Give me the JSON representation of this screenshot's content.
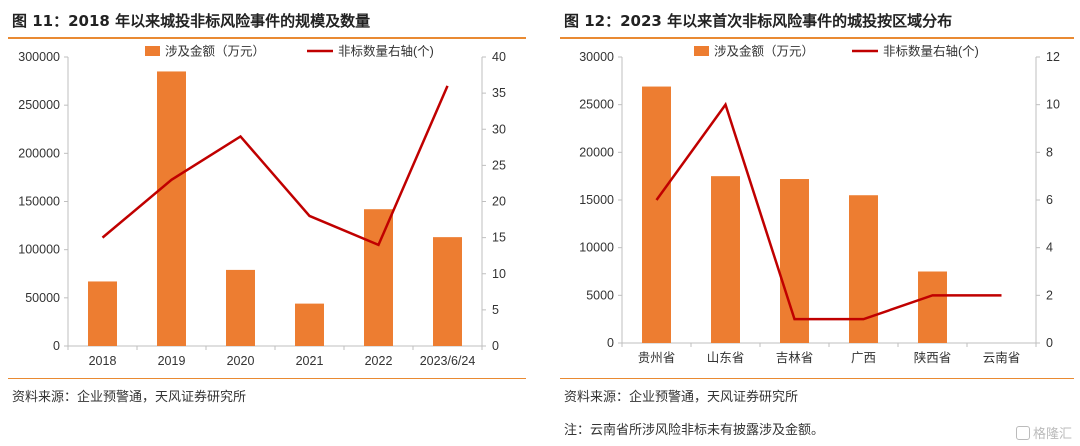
{
  "charts": [
    {
      "title": "图 11：2018 年以来城投非标风险事件的规模及数量",
      "source": "资料来源：企业预警通，天风证券研究所",
      "note": ""
    },
    {
      "title": "图 12：2023 年以来首次非标风险事件的城投按区域分布",
      "source": "资料来源：企业预警通，天风证券研究所",
      "note": "注：云南省所涉风险非标未有披露涉及金额。"
    }
  ],
  "watermark": "格隆汇",
  "chart_data": [
    {
      "type": "bar",
      "categories": [
        "2018",
        "2019",
        "2020",
        "2021",
        "2022",
        "2023/6/24"
      ],
      "series": [
        {
          "name": "涉及金额（万元）",
          "type": "bar",
          "axis": "left",
          "values": [
            67000,
            285000,
            79000,
            44000,
            142000,
            113000
          ],
          "color": "#ed7d31"
        },
        {
          "name": "非标数量右轴(个)",
          "type": "line",
          "axis": "right",
          "values": [
            15,
            23,
            29,
            18,
            14,
            36
          ],
          "color": "#c00000"
        }
      ],
      "y_left": {
        "min": 0,
        "max": 300000,
        "ticks": [
          0,
          50000,
          100000,
          150000,
          200000,
          250000,
          300000
        ]
      },
      "y_right": {
        "min": 0,
        "max": 40,
        "ticks": [
          0,
          5,
          10,
          15,
          20,
          25,
          30,
          35,
          40
        ]
      },
      "grid": false,
      "legend": "top-center"
    },
    {
      "type": "bar",
      "categories": [
        "贵州省",
        "山东省",
        "吉林省",
        "广西",
        "陕西省",
        "云南省"
      ],
      "series": [
        {
          "name": "涉及金额（万元）",
          "type": "bar",
          "axis": "left",
          "values": [
            26900,
            17500,
            17200,
            15500,
            7500,
            null
          ],
          "color": "#ed7d31"
        },
        {
          "name": "非标数量右轴(个)",
          "type": "line",
          "axis": "right",
          "values": [
            6,
            10,
            1,
            1,
            2,
            2
          ],
          "color": "#c00000"
        }
      ],
      "y_left": {
        "min": 0,
        "max": 30000,
        "ticks": [
          0,
          5000,
          10000,
          15000,
          20000,
          25000,
          30000
        ]
      },
      "y_right": {
        "min": 0,
        "max": 12,
        "ticks": [
          0,
          2,
          4,
          6,
          8,
          10,
          12
        ]
      },
      "grid": false,
      "legend": "top-center"
    }
  ]
}
